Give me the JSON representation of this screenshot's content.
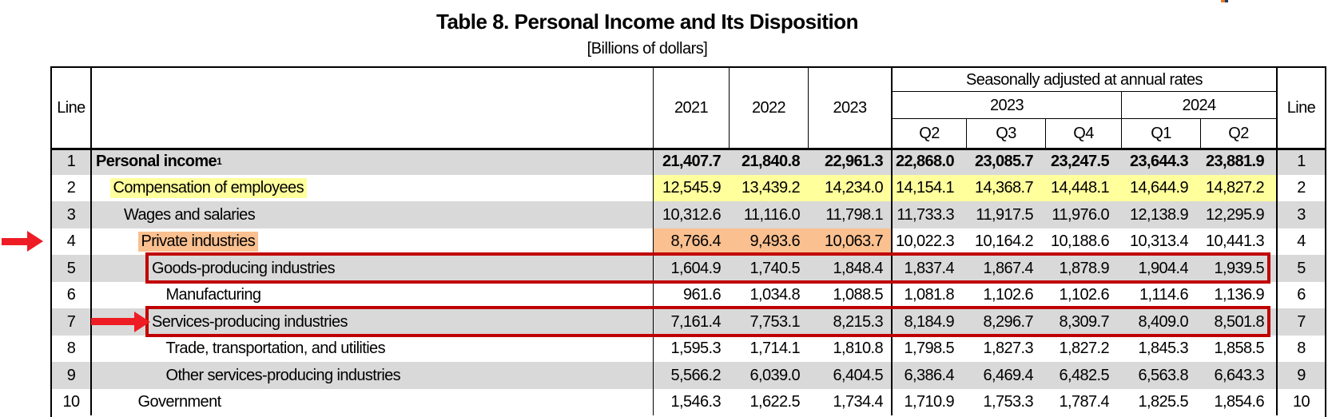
{
  "title": "Table 8. Personal Income and Its Disposition",
  "subtitle": "[Billions of dollars]",
  "header": {
    "line_label": "Line",
    "annual_years": [
      "2021",
      "2022",
      "2023"
    ],
    "sa_title": "Seasonally adjusted at annual rates",
    "sa_groups": [
      {
        "year": "2023",
        "quarters": [
          "Q2",
          "Q3",
          "Q4"
        ]
      },
      {
        "year": "2024",
        "quarters": [
          "Q1",
          "Q2"
        ]
      }
    ]
  },
  "rows": [
    {
      "line": "1",
      "label": "Personal income",
      "sup": "1",
      "indent": 1,
      "bold": true,
      "shade": "gray",
      "values": [
        "21,407.7",
        "21,840.8",
        "22,961.3",
        "22,868.0",
        "23,085.7",
        "23,247.5",
        "23,644.3",
        "23,881.9"
      ]
    },
    {
      "line": "2",
      "label": "Compensation of employees",
      "indent": 2,
      "shade": "white",
      "label_highlight": "yellow",
      "value_highlight": {
        "color": "yellow",
        "cols": [
          0,
          1,
          2,
          3,
          4,
          5,
          6,
          7
        ]
      },
      "values": [
        "12,545.9",
        "13,439.2",
        "14,234.0",
        "14,154.1",
        "14,368.7",
        "14,448.1",
        "14,644.9",
        "14,827.2"
      ]
    },
    {
      "line": "3",
      "label": "Wages and salaries",
      "indent": 3,
      "shade": "gray",
      "values": [
        "10,312.6",
        "11,116.0",
        "11,798.1",
        "11,733.3",
        "11,917.5",
        "11,976.0",
        "12,138.9",
        "12,295.9"
      ]
    },
    {
      "line": "4",
      "label": "Private industries",
      "indent": 4,
      "shade": "white",
      "label_highlight": "orange",
      "value_highlight": {
        "color": "orange",
        "cols": [
          0,
          1,
          2
        ]
      },
      "values": [
        "8,766.4",
        "9,493.6",
        "10,063.7",
        "10,022.3",
        "10,164.2",
        "10,188.6",
        "10,313.4",
        "10,441.3"
      ]
    },
    {
      "line": "5",
      "label": "Goods-producing industries",
      "indent": 5,
      "shade": "gray",
      "boxed": true,
      "values": [
        "1,604.9",
        "1,740.5",
        "1,848.4",
        "1,837.4",
        "1,867.4",
        "1,878.9",
        "1,904.4",
        "1,939.5"
      ]
    },
    {
      "line": "6",
      "label": "Manufacturing",
      "indent": 6,
      "shade": "white",
      "values": [
        "961.6",
        "1,034.8",
        "1,088.5",
        "1,081.8",
        "1,102.6",
        "1,102.6",
        "1,114.6",
        "1,136.9"
      ]
    },
    {
      "line": "7",
      "label": "Services-producing industries",
      "indent": 5,
      "shade": "gray",
      "boxed": true,
      "values": [
        "7,161.4",
        "7,753.1",
        "8,215.3",
        "8,184.9",
        "8,296.7",
        "8,309.7",
        "8,409.0",
        "8,501.8"
      ]
    },
    {
      "line": "8",
      "label": "Trade, transportation, and utilities",
      "indent": 6,
      "shade": "white",
      "values": [
        "1,595.3",
        "1,714.1",
        "1,810.8",
        "1,798.5",
        "1,827.3",
        "1,827.2",
        "1,845.3",
        "1,858.5"
      ]
    },
    {
      "line": "9",
      "label": "Other services-producing industries",
      "indent": 6,
      "shade": "gray",
      "values": [
        "5,566.2",
        "6,039.0",
        "6,404.5",
        "6,386.4",
        "6,469.4",
        "6,482.5",
        "6,563.8",
        "6,643.3"
      ]
    },
    {
      "line": "10",
      "label": "Government",
      "indent": 4,
      "shade": "white",
      "values": [
        "1,546.3",
        "1,622.5",
        "1,734.4",
        "1,710.9",
        "1,753.3",
        "1,787.4",
        "1,825.5",
        "1,854.6"
      ]
    }
  ],
  "colors": {
    "row_shade": "#d9d9d9",
    "yellow": "#ffff9c",
    "orange": "#fac090",
    "box_red": "#c00000",
    "arrow_red": "#ee1c25",
    "logo_orange": "#e87722",
    "logo_navy": "#203864"
  },
  "annotations": {
    "boxed_lines": [
      "5",
      "7"
    ],
    "arrow_target_lines": [
      "4",
      "7"
    ]
  }
}
